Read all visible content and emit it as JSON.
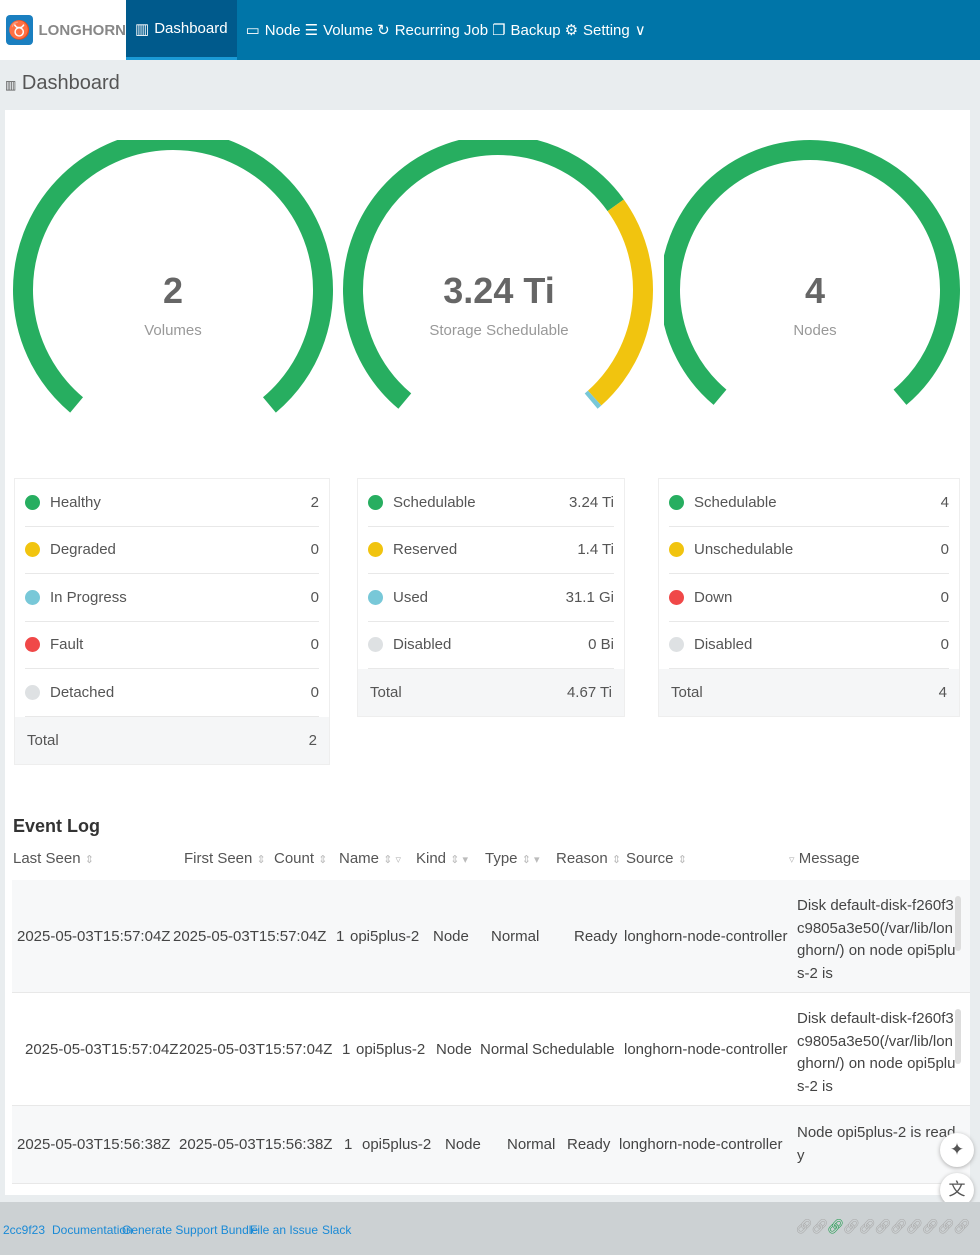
{
  "header": {
    "logo": "LONGHORN",
    "nav": [
      {
        "label": "Dashboard",
        "icon": "bar-chart-icon"
      },
      {
        "label": "Node",
        "icon": "laptop-icon"
      },
      {
        "label": "Volume",
        "icon": "database-icon"
      },
      {
        "label": "Recurring Job",
        "icon": "refresh-icon"
      },
      {
        "label": "Backup",
        "icon": "copy-icon"
      },
      {
        "label": "Setting",
        "icon": "gear-icon"
      }
    ]
  },
  "page_title": "Dashboard",
  "gauges": [
    {
      "value": "2",
      "label": "Volumes"
    },
    {
      "value": "3.24 Ti",
      "label": "Storage Schedulable"
    },
    {
      "value": "4",
      "label": "Nodes"
    }
  ],
  "colors": {
    "green": "#27ae60",
    "yellow": "#f1c40f",
    "blue": "#78c8d8",
    "red": "#f04848",
    "grey": "#dee1e3",
    "header": "#0075a8"
  },
  "volumes": {
    "items": [
      {
        "label": "Healthy",
        "value": "2",
        "color": "#27ae60"
      },
      {
        "label": "Degraded",
        "value": "0",
        "color": "#f1c40f"
      },
      {
        "label": "In Progress",
        "value": "0",
        "color": "#78c8d8"
      },
      {
        "label": "Fault",
        "value": "0",
        "color": "#f04848"
      },
      {
        "label": "Detached",
        "value": "0",
        "color": "#dee1e3"
      }
    ],
    "total_label": "Total",
    "total": "2"
  },
  "storage": {
    "items": [
      {
        "label": "Schedulable",
        "value": "3.24 Ti",
        "color": "#27ae60"
      },
      {
        "label": "Reserved",
        "value": "1.4 Ti",
        "color": "#f1c40f"
      },
      {
        "label": "Used",
        "value": "31.1 Gi",
        "color": "#78c8d8"
      },
      {
        "label": "Disabled",
        "value": "0 Bi",
        "color": "#dee1e3"
      }
    ],
    "total_label": "Total",
    "total": "4.67 Ti"
  },
  "nodes": {
    "items": [
      {
        "label": "Schedulable",
        "value": "4",
        "color": "#27ae60"
      },
      {
        "label": "Unschedulable",
        "value": "0",
        "color": "#f1c40f"
      },
      {
        "label": "Down",
        "value": "0",
        "color": "#f04848"
      },
      {
        "label": "Disabled",
        "value": "0",
        "color": "#dee1e3"
      }
    ],
    "total_label": "Total",
    "total": "4"
  },
  "event_log": {
    "title": "Event Log",
    "columns": [
      "Last Seen",
      "First Seen",
      "Count",
      "Name",
      "Kind",
      "Type",
      "Reason",
      "Source",
      "Message"
    ],
    "rows": [
      {
        "last": "2025-05-03T15:57:04Z",
        "first": "2025-05-03T15:57:04Z",
        "count": "1",
        "name": "opi5plus-2",
        "kind": "Node",
        "type": "Normal",
        "reason": "Ready",
        "source": "longhorn-node-controller",
        "message": "Disk default-disk-f260f3c9805a3e50(/var/lib/longhorn/) on node opi5plus-2 is"
      },
      {
        "last": "2025-05-03T15:57:04Z",
        "first": "2025-05-03T15:57:04Z",
        "count": "1",
        "name": "opi5plus-2",
        "kind": "Node",
        "type": "Normal",
        "reason": "Schedulable",
        "source": "longhorn-node-controller",
        "message": "Disk default-disk-f260f3c9805a3e50(/var/lib/longhorn/) on node opi5plus-2 is"
      },
      {
        "last": "2025-05-03T15:56:38Z",
        "first": "2025-05-03T15:56:38Z",
        "count": "1",
        "name": "opi5plus-2",
        "kind": "Node",
        "type": "Normal",
        "reason": "Ready",
        "source": "longhorn-node-controller",
        "message": "Node opi5plus-2 is ready"
      }
    ]
  },
  "footer": {
    "links": [
      "2cc9f23",
      "Documentation",
      "Generate Support Bundle",
      "File an Issue",
      "Slack"
    ]
  }
}
